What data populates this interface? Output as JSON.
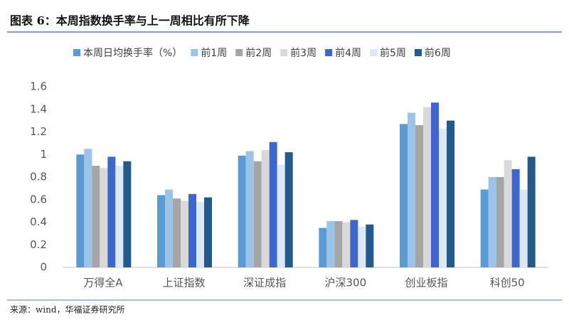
{
  "chart_data": {
    "type": "bar",
    "title": "图表 6：本周指数换手率与上一周相比有所下降",
    "source": "来源：wind，华福证券研究所",
    "categories": [
      "万得全A",
      "上证指数",
      "深证成指",
      "沪深300",
      "创业板指",
      "科创50"
    ],
    "series": [
      {
        "name": "本周日均换手率（%）",
        "color": "#5b9bd5",
        "values": [
          1.0,
          0.64,
          0.99,
          0.35,
          1.27,
          0.69
        ]
      },
      {
        "name": "前1周",
        "color": "#9dc3e6",
        "values": [
          1.05,
          0.69,
          1.03,
          0.41,
          1.37,
          0.8
        ]
      },
      {
        "name": "前2周",
        "color": "#a5a5a5",
        "values": [
          0.9,
          0.61,
          0.94,
          0.41,
          1.26,
          0.8
        ]
      },
      {
        "name": "前3周",
        "color": "#d9d9d9",
        "values": [
          0.88,
          0.59,
          1.04,
          0.4,
          1.42,
          0.95
        ]
      },
      {
        "name": "前4周",
        "color": "#3f66cc",
        "values": [
          0.98,
          0.65,
          1.11,
          0.42,
          1.46,
          0.87
        ]
      },
      {
        "name": "前5周",
        "color": "#dde8f6",
        "values": [
          0.9,
          0.58,
          0.91,
          0.36,
          1.23,
          0.69
        ]
      },
      {
        "name": "前6周",
        "color": "#225a8c",
        "values": [
          0.94,
          0.62,
          1.02,
          0.38,
          1.3,
          0.98
        ]
      }
    ],
    "ylim": [
      0,
      1.6
    ],
    "yticks": [
      0,
      0.2,
      0.4,
      0.6,
      0.8,
      1,
      1.2,
      1.4,
      1.6
    ],
    "grid": false
  }
}
